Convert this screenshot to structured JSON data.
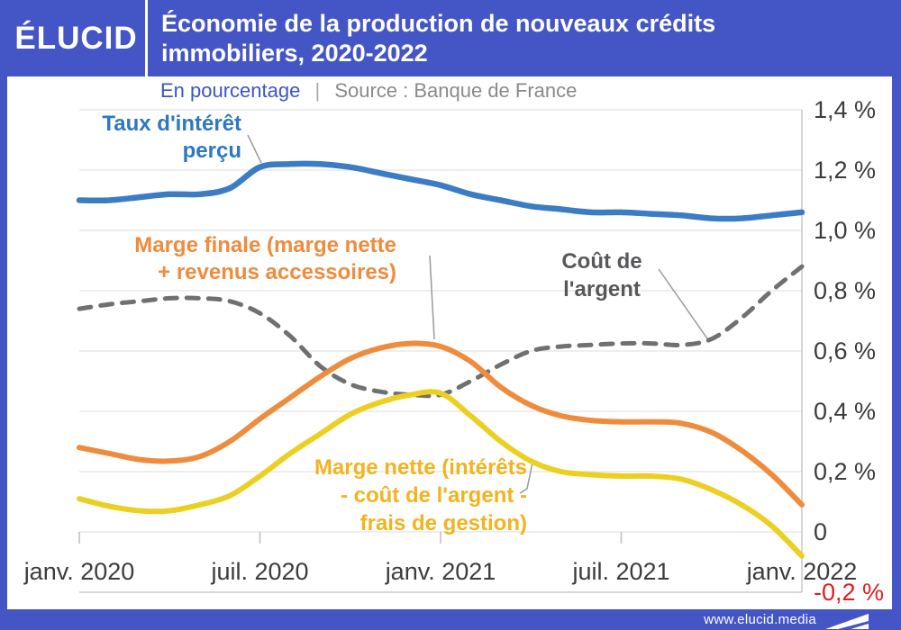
{
  "header": {
    "logo": "ÉLUCID",
    "title": "Économie de la production de nouveaux crédits\nimmobiliers, 2020-2022"
  },
  "subheader": {
    "unit": "En pourcentage",
    "separator": "|",
    "source": "Source : Banque de France"
  },
  "footer": {
    "url": "www.elucid.media"
  },
  "colors": {
    "brand_blue": "#4456c6",
    "line_blue": "#3b7cc4",
    "line_orange": "#ef8b3c",
    "line_yellow": "#ecd021",
    "line_gray": "#707070",
    "negative_red": "#e41c1f",
    "axis_text": "#3c3c3c",
    "gridline": "#e8e8e8",
    "axis_frame": "#cccccc",
    "callout": "#9a9a9a"
  },
  "annotations": {
    "taux": {
      "text": "Taux d'intérêt\nperçu"
    },
    "finale": {
      "text": "Marge finale (marge nette\n+ revenus accessoires)"
    },
    "cout": {
      "text": "Coût de\nl'argent"
    },
    "nette": {
      "text": "Marge nette (intérêts\n- coût de l'argent -\nfrais de gestion)"
    }
  },
  "chart_data": {
    "type": "line",
    "title": "Économie de la production de nouveaux crédits immobiliers, 2020-2022",
    "unit": "En pourcentage",
    "source": "Source : Banque de France",
    "x_range": [
      "janv. 2020",
      "janv. 2022"
    ],
    "x_interval": "monthly",
    "ylim": [
      -0.2,
      1.4
    ],
    "grid": true,
    "x_ticks": [
      {
        "month_index": 0,
        "label": "janv. 2020"
      },
      {
        "month_index": 6,
        "label": "juil. 2020"
      },
      {
        "month_index": 12,
        "label": "janv. 2021"
      },
      {
        "month_index": 18,
        "label": "juil. 2021"
      },
      {
        "month_index": 24,
        "label": "janv. 2022"
      }
    ],
    "y_ticks": [
      {
        "value": 1.4,
        "label": "1,4 %"
      },
      {
        "value": 1.2,
        "label": "1,2 %"
      },
      {
        "value": 1.0,
        "label": "1,0 %"
      },
      {
        "value": 0.8,
        "label": "0,8 %"
      },
      {
        "value": 0.6,
        "label": "0,6 %"
      },
      {
        "value": 0.4,
        "label": "0,4 %"
      },
      {
        "value": 0.2,
        "label": "0,2 %"
      },
      {
        "value": 0,
        "label": "0"
      },
      {
        "value": -0.2,
        "label": "-0,2 %",
        "color": "#e41c1f"
      }
    ],
    "series": [
      {
        "name": "Coût de l'argent",
        "color": "#707070",
        "dashed": true,
        "width": 5,
        "values": [
          0.74,
          0.755,
          0.765,
          0.775,
          0.775,
          0.765,
          0.725,
          0.65,
          0.55,
          0.49,
          0.465,
          0.455,
          0.455,
          0.5,
          0.555,
          0.6,
          0.615,
          0.62,
          0.625,
          0.625,
          0.62,
          0.64,
          0.71,
          0.8,
          0.88
        ]
      },
      {
        "name": "Marge finale (marge nette + revenus accessoires)",
        "color": "#ef8b3c",
        "dashed": false,
        "width": 6,
        "values": [
          0.28,
          0.26,
          0.24,
          0.235,
          0.25,
          0.3,
          0.375,
          0.445,
          0.515,
          0.575,
          0.61,
          0.625,
          0.615,
          0.565,
          0.48,
          0.42,
          0.385,
          0.37,
          0.365,
          0.365,
          0.36,
          0.33,
          0.27,
          0.19,
          0.09
        ]
      },
      {
        "name": "Marge nette (intérêts - coût de l'argent - frais de gestion)",
        "color": "#ecd021",
        "dashed": false,
        "width": 6,
        "values": [
          0.11,
          0.085,
          0.07,
          0.07,
          0.09,
          0.12,
          0.185,
          0.26,
          0.325,
          0.39,
          0.43,
          0.455,
          0.46,
          0.385,
          0.3,
          0.235,
          0.2,
          0.19,
          0.185,
          0.185,
          0.175,
          0.14,
          0.09,
          0.02,
          -0.08
        ]
      },
      {
        "name": "Taux d'intérêt perçu",
        "color": "#3b7cc4",
        "dashed": false,
        "width": 6.5,
        "values": [
          1.1,
          1.1,
          1.11,
          1.12,
          1.12,
          1.14,
          1.21,
          1.22,
          1.22,
          1.21,
          1.19,
          1.17,
          1.15,
          1.12,
          1.1,
          1.08,
          1.07,
          1.06,
          1.06,
          1.055,
          1.05,
          1.04,
          1.04,
          1.05,
          1.06
        ]
      }
    ],
    "legend_position": "inline-annotations"
  }
}
